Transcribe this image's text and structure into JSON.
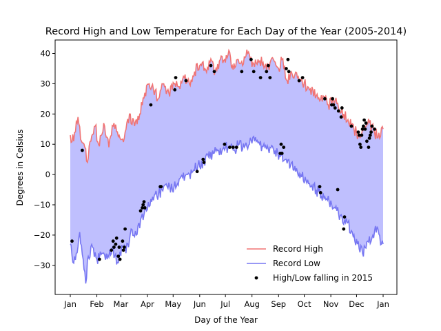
{
  "chart_data": {
    "type": "line",
    "title": "Record High and Low Temperature for Each Day of the Year (2005-2014)",
    "xlabel": "Day of the Year",
    "ylabel": "Degrees in Celsius",
    "xlim": [
      1,
      366
    ],
    "ylim": [
      -40,
      45
    ],
    "x_ticks": [
      {
        "day": 1,
        "label": "Jan"
      },
      {
        "day": 32,
        "label": "Feb"
      },
      {
        "day": 60,
        "label": "Mar"
      },
      {
        "day": 91,
        "label": "Apr"
      },
      {
        "day": 121,
        "label": "May"
      },
      {
        "day": 152,
        "label": "Jun"
      },
      {
        "day": 182,
        "label": "Jul"
      },
      {
        "day": 213,
        "label": "Aug"
      },
      {
        "day": 244,
        "label": "Sep"
      },
      {
        "day": 274,
        "label": "Oct"
      },
      {
        "day": 305,
        "label": "Nov"
      },
      {
        "day": 335,
        "label": "Dec"
      },
      {
        "day": 366,
        "label": "Jan"
      }
    ],
    "y_ticks": [
      -30,
      -20,
      -10,
      0,
      10,
      20,
      30,
      40
    ],
    "grid": false,
    "legend_position": "lower-right",
    "fill_color": "#bfbffe",
    "series": [
      {
        "name": "Record High",
        "color": "#f07474",
        "keypoints": [
          [
            1,
            13
          ],
          [
            5,
            11
          ],
          [
            10,
            19
          ],
          [
            14,
            11
          ],
          [
            18,
            9
          ],
          [
            21,
            4
          ],
          [
            25,
            11
          ],
          [
            30,
            16
          ],
          [
            34,
            10
          ],
          [
            40,
            17
          ],
          [
            46,
            9
          ],
          [
            52,
            17
          ],
          [
            58,
            13
          ],
          [
            64,
            12
          ],
          [
            70,
            20
          ],
          [
            76,
            16
          ],
          [
            82,
            20
          ],
          [
            88,
            27
          ],
          [
            93,
            30
          ],
          [
            98,
            28
          ],
          [
            104,
            25
          ],
          [
            110,
            30
          ],
          [
            116,
            27
          ],
          [
            122,
            30
          ],
          [
            128,
            29
          ],
          [
            134,
            32
          ],
          [
            140,
            30
          ],
          [
            146,
            34
          ],
          [
            152,
            36
          ],
          [
            158,
            35
          ],
          [
            164,
            37
          ],
          [
            170,
            34
          ],
          [
            176,
            38
          ],
          [
            182,
            37
          ],
          [
            186,
            41
          ],
          [
            190,
            36
          ],
          [
            196,
            38
          ],
          [
            202,
            36
          ],
          [
            208,
            40
          ],
          [
            214,
            37
          ],
          [
            220,
            38
          ],
          [
            226,
            37
          ],
          [
            232,
            36
          ],
          [
            238,
            38
          ],
          [
            244,
            35
          ],
          [
            248,
            38
          ],
          [
            254,
            31
          ],
          [
            260,
            33
          ],
          [
            266,
            32
          ],
          [
            272,
            30
          ],
          [
            278,
            29
          ],
          [
            284,
            28
          ],
          [
            290,
            25
          ],
          [
            296,
            26
          ],
          [
            302,
            23
          ],
          [
            308,
            25
          ],
          [
            314,
            22
          ],
          [
            320,
            20
          ],
          [
            326,
            17
          ],
          [
            332,
            15
          ],
          [
            338,
            13
          ],
          [
            344,
            15
          ],
          [
            350,
            17
          ],
          [
            356,
            14
          ],
          [
            362,
            12
          ],
          [
            366,
            15
          ]
        ]
      },
      {
        "name": "Record Low",
        "color": "#7777f2",
        "keypoints": [
          [
            1,
            -23
          ],
          [
            4,
            -29
          ],
          [
            8,
            -26
          ],
          [
            12,
            -19
          ],
          [
            16,
            -28
          ],
          [
            19,
            -36
          ],
          [
            22,
            -27
          ],
          [
            27,
            -24
          ],
          [
            32,
            -28
          ],
          [
            38,
            -26
          ],
          [
            44,
            -28
          ],
          [
            50,
            -24
          ],
          [
            56,
            -29
          ],
          [
            62,
            -24
          ],
          [
            66,
            -26
          ],
          [
            72,
            -18
          ],
          [
            78,
            -20
          ],
          [
            84,
            -14
          ],
          [
            90,
            -12
          ],
          [
            96,
            -9
          ],
          [
            102,
            -7
          ],
          [
            108,
            -5
          ],
          [
            114,
            -4
          ],
          [
            120,
            -5
          ],
          [
            126,
            -3
          ],
          [
            132,
            -1
          ],
          [
            138,
            0
          ],
          [
            144,
            1
          ],
          [
            150,
            3
          ],
          [
            156,
            4
          ],
          [
            162,
            6
          ],
          [
            168,
            7
          ],
          [
            174,
            8
          ],
          [
            180,
            9
          ],
          [
            186,
            9
          ],
          [
            192,
            8
          ],
          [
            198,
            10
          ],
          [
            204,
            9
          ],
          [
            210,
            10
          ],
          [
            216,
            11
          ],
          [
            222,
            10
          ],
          [
            228,
            9
          ],
          [
            234,
            9
          ],
          [
            240,
            8
          ],
          [
            246,
            6
          ],
          [
            252,
            5
          ],
          [
            258,
            3
          ],
          [
            264,
            1
          ],
          [
            270,
            0
          ],
          [
            276,
            -2
          ],
          [
            282,
            -4
          ],
          [
            288,
            -5
          ],
          [
            294,
            -7
          ],
          [
            300,
            -8
          ],
          [
            306,
            -10
          ],
          [
            312,
            -12
          ],
          [
            318,
            -14
          ],
          [
            324,
            -16
          ],
          [
            330,
            -19
          ],
          [
            336,
            -23
          ],
          [
            342,
            -26
          ],
          [
            348,
            -22
          ],
          [
            354,
            -20
          ],
          [
            360,
            -18
          ],
          [
            364,
            -23
          ],
          [
            366,
            -23
          ]
        ]
      },
      {
        "name": "High/Low falling in 2015",
        "color": "#000000",
        "points": [
          [
            3,
            -22
          ],
          [
            15,
            8
          ],
          [
            35,
            -28
          ],
          [
            49,
            -25
          ],
          [
            51,
            -22
          ],
          [
            52,
            -24
          ],
          [
            54,
            -23
          ],
          [
            55,
            -21
          ],
          [
            57,
            -27
          ],
          [
            58,
            -24
          ],
          [
            59,
            -28
          ],
          [
            62,
            -22
          ],
          [
            63,
            -25
          ],
          [
            64,
            -24
          ],
          [
            65,
            -18
          ],
          [
            83,
            -12
          ],
          [
            85,
            -11
          ],
          [
            86,
            -10
          ],
          [
            87,
            -9
          ],
          [
            88,
            -11
          ],
          [
            95,
            23
          ],
          [
            106,
            -4
          ],
          [
            107,
            -4
          ],
          [
            123,
            28
          ],
          [
            124,
            32
          ],
          [
            136,
            31
          ],
          [
            149,
            1
          ],
          [
            156,
            5
          ],
          [
            157,
            4
          ],
          [
            165,
            36
          ],
          [
            169,
            34
          ],
          [
            181,
            10
          ],
          [
            187,
            9
          ],
          [
            191,
            9
          ],
          [
            195,
            9
          ],
          [
            201,
            34
          ],
          [
            212,
            38
          ],
          [
            215,
            34
          ],
          [
            223,
            32
          ],
          [
            230,
            34
          ],
          [
            232,
            36
          ],
          [
            234,
            32
          ],
          [
            246,
            7
          ],
          [
            247,
            10
          ],
          [
            248,
            7
          ],
          [
            250,
            9
          ],
          [
            253,
            35
          ],
          [
            255,
            38
          ],
          [
            256,
            34
          ],
          [
            268,
            31
          ],
          [
            272,
            32
          ],
          [
            292,
            -4
          ],
          [
            293,
            -6
          ],
          [
            298,
            25
          ],
          [
            306,
            23
          ],
          [
            307,
            25
          ],
          [
            308,
            23
          ],
          [
            310,
            22
          ],
          [
            313,
            -5
          ],
          [
            314,
            21
          ],
          [
            317,
            19
          ],
          [
            318,
            22
          ],
          [
            320,
            -18
          ],
          [
            321,
            -14
          ],
          [
            329,
            16
          ],
          [
            337,
            14
          ],
          [
            338,
            13
          ],
          [
            339,
            10
          ],
          [
            340,
            9
          ],
          [
            341,
            13
          ],
          [
            342,
            15
          ],
          [
            343,
            16
          ],
          [
            344,
            18
          ],
          [
            345,
            15
          ],
          [
            346,
            17
          ],
          [
            347,
            11
          ],
          [
            349,
            9
          ],
          [
            350,
            12
          ],
          [
            351,
            13
          ],
          [
            352,
            14
          ],
          [
            353,
            16
          ],
          [
            356,
            15
          ]
        ]
      }
    ]
  }
}
